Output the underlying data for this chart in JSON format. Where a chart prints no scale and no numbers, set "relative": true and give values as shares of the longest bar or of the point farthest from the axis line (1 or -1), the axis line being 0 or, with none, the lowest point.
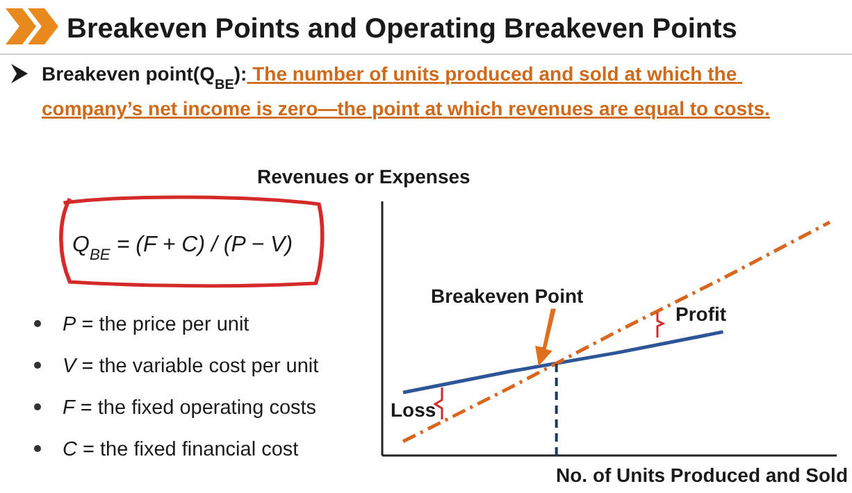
{
  "chart_data": {
    "type": "line",
    "title": "Breakeven Points and Operating Breakeven Points",
    "subtitle": "Breakeven point(Q$_{BE}$): The number of units produced and sold at which the company’s net income is zero—the point at which revenues are equal to costs.",
    "ylabel": "Revenues or Expenses",
    "xlabel": "No. of Units Produced and Sold",
    "relative": true,
    "categories": [
      null,
      null,
      null,
      null,
      null
    ],
    "series": [
      {
        "color": "#2e5597",
        "values": [
          0.27,
          0.36,
          0.44,
          0.53,
          null
        ],
        "line_style": "solid"
      },
      {
        "color": "#d9661f",
        "values": [
          0.06,
          0.29,
          0.53,
          0.76,
          1
        ],
        "line_style": "dashdot"
      }
    ],
    "annotations": [
      "Q$_{BE}$ = (F + C) / (P − V)",
      "P = the price per unit",
      "V = the variable cost per unit",
      "F = the fixed operating costs",
      "C = the fixed financial cost",
      "Breakeven Point",
      "Profit",
      "Loss"
    ]
  }
}
